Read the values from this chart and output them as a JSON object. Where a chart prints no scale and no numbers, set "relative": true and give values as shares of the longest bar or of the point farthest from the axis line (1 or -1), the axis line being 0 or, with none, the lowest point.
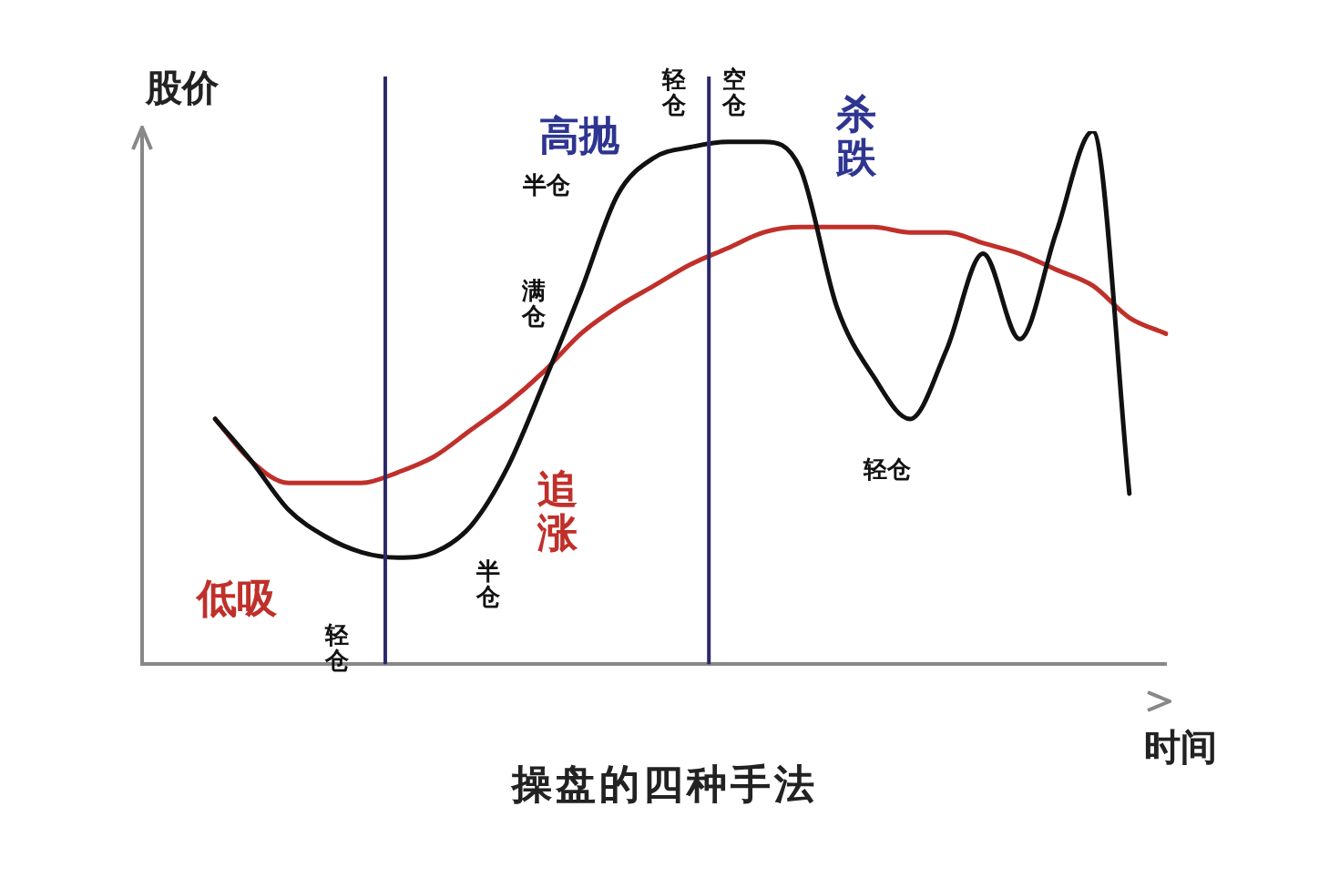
{
  "chart_data": {
    "type": "line",
    "relative": true,
    "title": "操盘的四种手法",
    "ylabel": "股价",
    "xlabel": "时间",
    "categories": [
      null,
      null,
      null,
      null,
      null,
      null,
      null,
      null,
      null,
      null,
      null,
      null,
      null,
      null,
      null,
      null,
      null,
      null,
      null,
      null,
      null,
      null,
      null,
      null,
      null,
      null,
      null,
      null,
      null
    ],
    "series": [
      {
        "color": "#111111",
        "values": [
          null,
          null,
          0.46,
          0.38,
          0.29,
          0.24,
          0.21,
          0.2,
          0.21,
          0.26,
          0.37,
          0.53,
          0.7,
          0.88,
          0.95,
          0.97,
          0.98,
          0.98,
          0.93,
          0.67,
          0.54,
          0.46,
          0.59,
          0.77,
          0.61,
          0.81,
          1,
          0.32,
          null
        ]
      },
      {
        "color": "#c0302a",
        "values": [
          null,
          null,
          0.46,
          0.38,
          0.34,
          0.34,
          0.34,
          0.36,
          0.39,
          0.44,
          0.49,
          0.55,
          0.62,
          0.67,
          0.71,
          0.75,
          0.78,
          0.81,
          0.82,
          0.82,
          0.82,
          0.81,
          0.81,
          0.79,
          0.77,
          0.74,
          0.71,
          0.65,
          0.62
        ]
      }
    ],
    "annotations": [
      "低吸",
      "轻仓",
      "半仓",
      "满仓",
      "追涨",
      "高抛",
      "半仓",
      "轻仓",
      "空仓",
      "杀跌",
      "轻仓"
    ],
    "grid": false,
    "legend": false,
    "marker": "none",
    "line_style": "solid"
  }
}
